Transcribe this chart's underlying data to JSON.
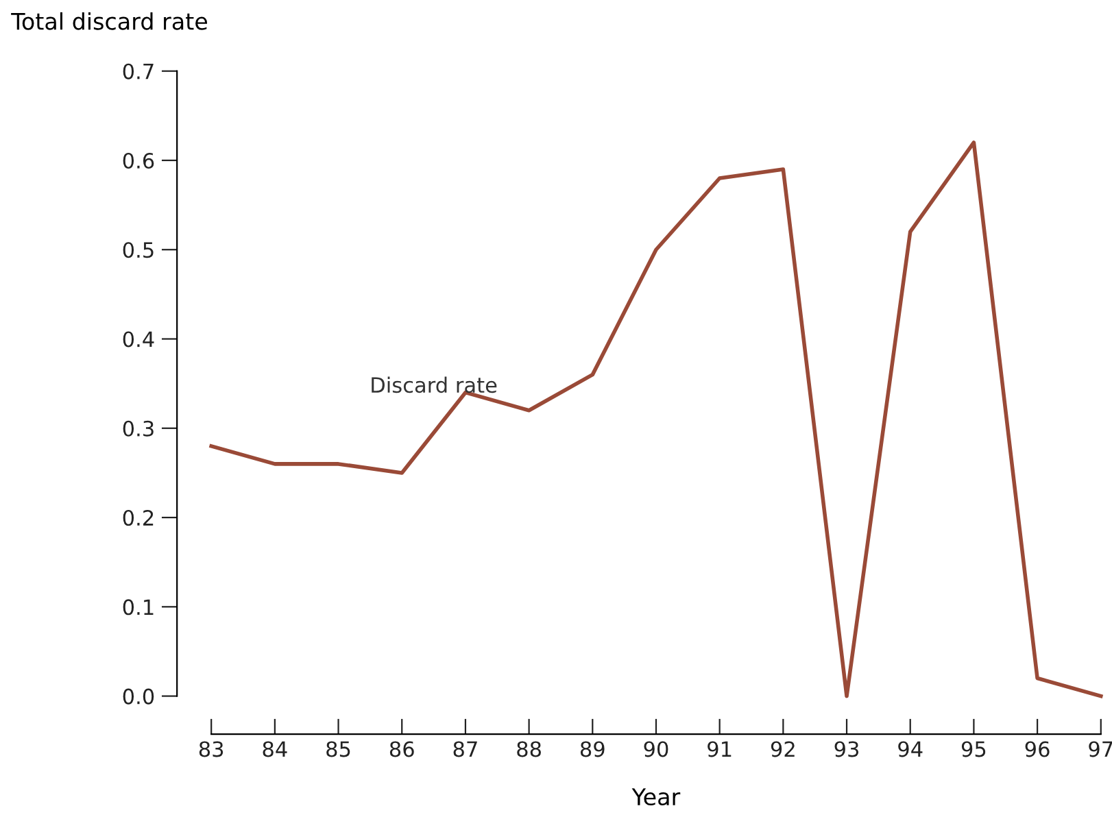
{
  "chart_data": {
    "type": "line",
    "xlabel": "Year",
    "ylabel": "Total discard rate",
    "x": [
      83,
      84,
      85,
      86,
      87,
      88,
      89,
      90,
      91,
      92,
      93,
      94,
      95,
      96,
      97
    ],
    "series": [
      {
        "name": "Discard rate",
        "color": "#9a4a37",
        "values": [
          0.28,
          0.26,
          0.26,
          0.25,
          0.34,
          0.32,
          0.36,
          0.5,
          0.58,
          0.59,
          0.0,
          0.52,
          0.62,
          0.02,
          0.0
        ]
      }
    ],
    "xlim": [
      83,
      97
    ],
    "xticks": [
      83,
      84,
      85,
      86,
      87,
      88,
      89,
      90,
      91,
      92,
      93,
      94,
      95,
      96,
      97
    ],
    "ylim": [
      0,
      0.7
    ],
    "yticks": [
      {
        "value": 0,
        "label": "0.0"
      },
      0.1,
      0.2,
      0.3,
      0.4,
      0.5,
      0.6,
      0.7
    ],
    "grid": false,
    "marker": "none",
    "line_style": "solid"
  }
}
